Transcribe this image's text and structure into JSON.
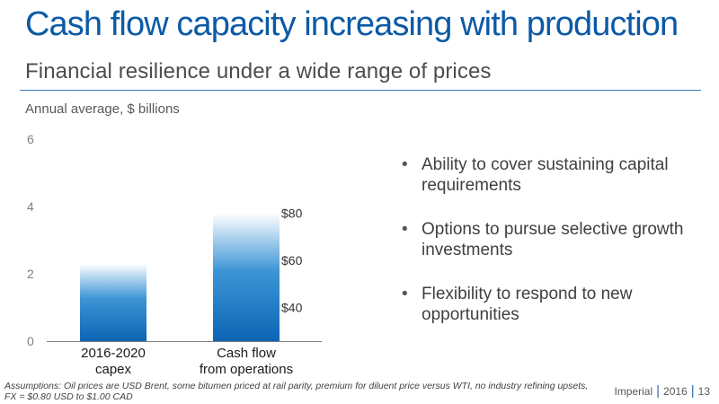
{
  "slide": {
    "title": "Cash flow capacity increasing with production",
    "subtitle": "Financial resilience under a wide range of prices",
    "unit_label": "Annual average, $ billions",
    "bullets": [
      "Ability to cover sustaining capital requirements",
      "Options to pursue selective growth investments",
      "Flexibility to respond to new opportunities"
    ],
    "footnote": "Assumptions: Oil prices are USD Brent, some bitumen priced at rail parity, premium for diluent price versus WTI, no industry refining upsets, FX = $0.80 USD to $1.00 CAD",
    "footer": {
      "company": "Imperial",
      "year": "2016",
      "page": "13"
    }
  },
  "chart_data": {
    "type": "bar",
    "categories": [
      [
        "2016-2020",
        "capex"
      ],
      [
        "Cash flow",
        "from operations"
      ]
    ],
    "values": [
      2.3,
      3.8
    ],
    "ylim": [
      0,
      6
    ],
    "yticks": [
      0,
      2,
      4,
      6
    ],
    "grid": false,
    "price_annotations": [
      {
        "label": "$80",
        "value": 3.8
      },
      {
        "label": "$60",
        "value": 2.4
      },
      {
        "label": "$40",
        "value": 1.0
      }
    ],
    "colors": {
      "bar_dark": "#0d64b4",
      "bar_mid": "#3d95d6",
      "bar_light": "#ffffff",
      "axis": "#7f7f7f"
    }
  }
}
